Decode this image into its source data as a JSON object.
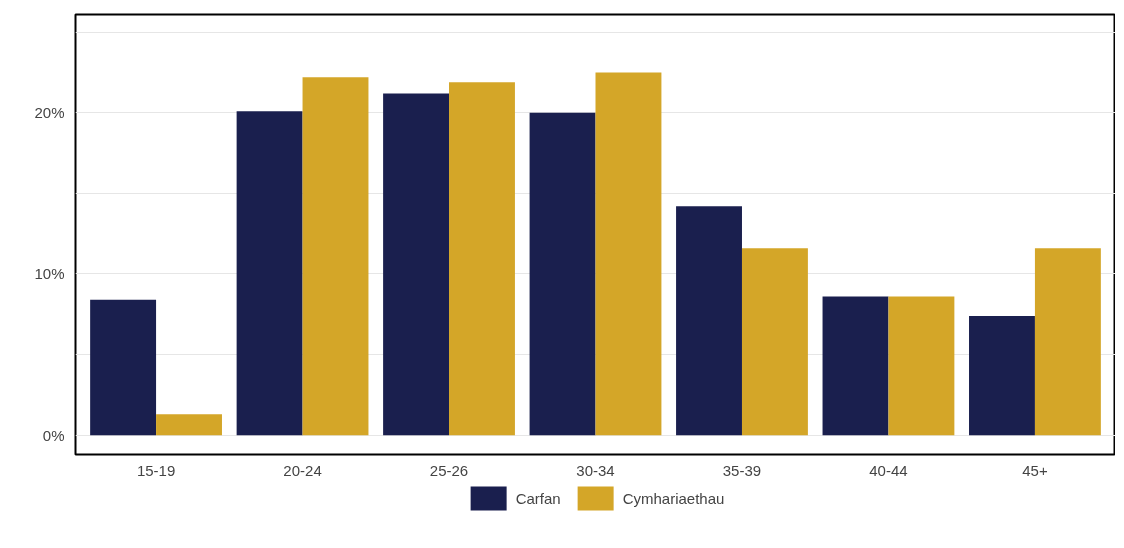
{
  "chart_data": {
    "type": "bar",
    "categories": [
      "15-19",
      "20-24",
      "25-26",
      "30-34",
      "35-39",
      "40-44",
      "45+"
    ],
    "series": [
      {
        "name": "Carfan",
        "color": "#1a1f4e",
        "values": [
          8.4,
          20.1,
          21.2,
          20.0,
          14.2,
          8.6,
          7.4
        ]
      },
      {
        "name": "Cymhariaethau",
        "color": "#d4a628",
        "values": [
          1.3,
          22.2,
          21.9,
          22.5,
          11.6,
          8.6,
          11.6
        ]
      }
    ],
    "ylim": [
      -1.2,
      26.1
    ],
    "yticks": [
      {
        "value": 0,
        "label": "0%"
      },
      {
        "value": 5,
        "label": null
      },
      {
        "value": 10,
        "label": "10%"
      },
      {
        "value": 15,
        "label": null
      },
      {
        "value": 20,
        "label": "20%"
      },
      {
        "value": 25,
        "label": null
      }
    ],
    "grid": "y",
    "legend": "bottom"
  }
}
